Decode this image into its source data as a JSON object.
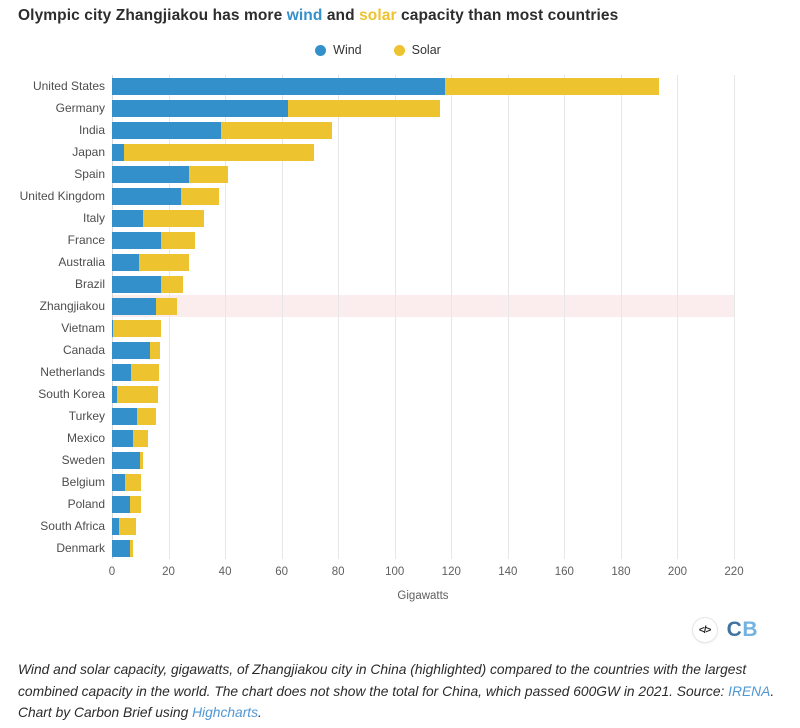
{
  "title": {
    "prefix": "Olympic city Zhangjiakou has more ",
    "wind_word": "wind",
    "middle": " and ",
    "solar_word": "solar",
    "suffix": " capacity than most countries"
  },
  "colors": {
    "wind": "#3390ca",
    "solar": "#edc32f",
    "highlight_band": "#fbecee",
    "grid_line": "#e7e7e7",
    "title_text": "#2d2d2d",
    "category_label": "#4d4d4d",
    "tick_label": "#606060",
    "footer_link": "#4f97d4",
    "cb_logo_c": "#41749f",
    "cb_logo_b": "#74b2e0"
  },
  "legend": [
    {
      "label": "Wind",
      "color": "#3390ca"
    },
    {
      "label": "Solar",
      "color": "#edc32f"
    }
  ],
  "chart_data": {
    "type": "bar",
    "orientation": "horizontal",
    "stacked": true,
    "grid": true,
    "legend_position": "top",
    "xlabel": "Gigawatts",
    "xlim": [
      0,
      220
    ],
    "xticks": [
      0,
      20,
      40,
      60,
      80,
      100,
      120,
      140,
      160,
      180,
      200,
      220
    ],
    "highlighted_category": "Zhangjiakou",
    "categories": [
      "United States",
      "Germany",
      "India",
      "Japan",
      "Spain",
      "United Kingdom",
      "Italy",
      "France",
      "Australia",
      "Brazil",
      "Zhangjiakou",
      "Vietnam",
      "Canada",
      "Netherlands",
      "South Korea",
      "Turkey",
      "Mexico",
      "Sweden",
      "Belgium",
      "Poland",
      "South Africa",
      "Denmark"
    ],
    "series": [
      {
        "name": "Wind",
        "color": "#3390ca",
        "values": [
          117.7,
          62.2,
          38.6,
          4.4,
          27.1,
          24.5,
          10.9,
          17.5,
          9.5,
          17.2,
          15.6,
          0.5,
          13.6,
          6.6,
          1.6,
          8.8,
          7.3,
          9.8,
          4.7,
          6.3,
          2.6,
          6.2
        ]
      },
      {
        "name": "Solar",
        "color": "#edc32f",
        "values": [
          75.6,
          53.7,
          39.2,
          67.0,
          14.1,
          13.5,
          21.7,
          11.7,
          17.6,
          7.9,
          7.4,
          16.7,
          3.3,
          10.2,
          14.6,
          6.7,
          5.6,
          1.1,
          5.6,
          3.9,
          5.9,
          1.3
        ]
      }
    ]
  },
  "branding": {
    "embed_glyph": "</>",
    "cb_c": "C",
    "cb_b": "B"
  },
  "footer": {
    "part1": "Wind and solar capacity, gigawatts, of Zhangjiakou city in China (highlighted) compared to the countries with the largest combined capacity in the world. The chart does not show the total for China, which passed 600GW in 2021. Source: ",
    "link_irena": "IRENA",
    "part2": ". Chart by Carbon Brief using ",
    "link_highcharts": "Highcharts",
    "part3": "."
  }
}
